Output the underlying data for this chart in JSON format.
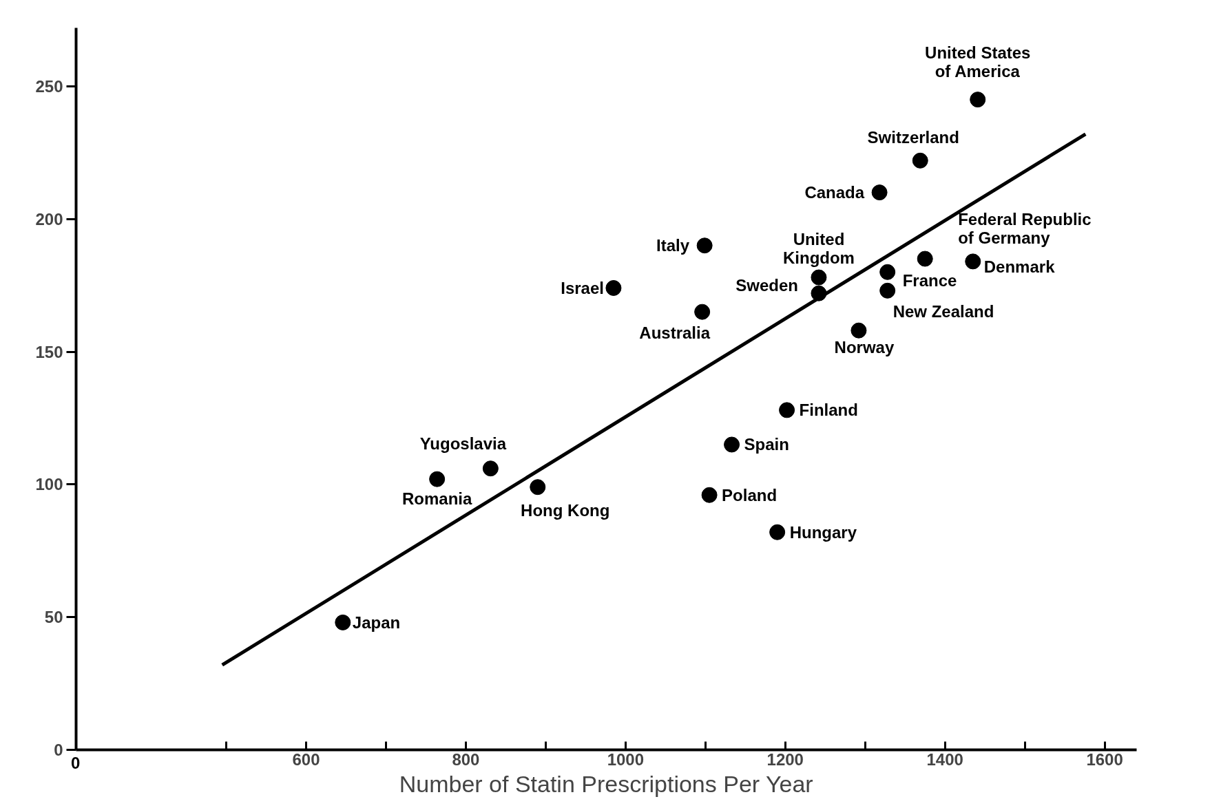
{
  "chart_data": {
    "type": "scatter",
    "xlabel": "Number of Statin Prescriptions Per Year",
    "xlim": [
      312,
      1640
    ],
    "ylim": [
      0,
      272
    ],
    "annotations": [
      "0"
    ],
    "xticks": [
      {
        "value": 500,
        "label": null
      },
      600,
      {
        "value": 700,
        "label": null
      },
      800,
      {
        "value": 900,
        "label": null
      },
      1000,
      {
        "value": 1100,
        "label": null
      },
      1200,
      {
        "value": 1300,
        "label": null
      },
      1400,
      {
        "value": 1500,
        "label": null
      },
      1600
    ],
    "yticks": [
      0,
      50,
      100,
      150,
      200,
      250
    ],
    "grid": false,
    "marker": "circle",
    "series": [
      {
        "color": "#000000",
        "x": [
          646,
          764,
          831,
          890,
          985,
          1096,
          1099,
          1242,
          1242,
          1318,
          1369,
          1441,
          1292,
          1202,
          1133,
          1105,
          1190,
          1375,
          1328,
          1328,
          1435
        ],
        "values": [
          48,
          102,
          106,
          99,
          174,
          165,
          190,
          178,
          172,
          210,
          222,
          245,
          158,
          128,
          115,
          96,
          82,
          185,
          180,
          173,
          184
        ],
        "value_labels": [
          "Japan",
          "Romania",
          "Yugoslavia",
          "Hong Kong",
          "Israel",
          "Australia",
          "Italy",
          "United\nKingdom",
          "Sweden",
          "Canada",
          "Switzerland",
          "United States\nof America",
          "Norway",
          "Finland",
          "Spain",
          "Poland",
          "Hungary",
          "Federal Republic\nof Germany",
          "France",
          "New Zealand",
          "Denmark"
        ]
      },
      {
        "type": "line",
        "color": "#000000",
        "x": [
          495,
          1576
        ],
        "values": [
          32,
          232
        ],
        "line_style": "solid",
        "marker": "none"
      }
    ]
  }
}
